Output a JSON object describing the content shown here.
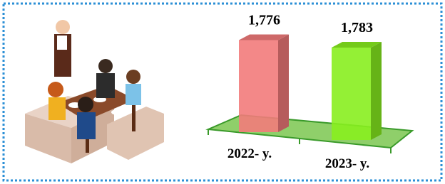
{
  "chart_data": {
    "type": "bar3d",
    "categories": [
      "2022- y.",
      "2023- y."
    ],
    "values": [
      1776,
      1783
    ],
    "value_labels": [
      "1,776",
      "1,783"
    ],
    "colors": [
      "#f27b7b",
      "#88ee1f"
    ]
  }
}
